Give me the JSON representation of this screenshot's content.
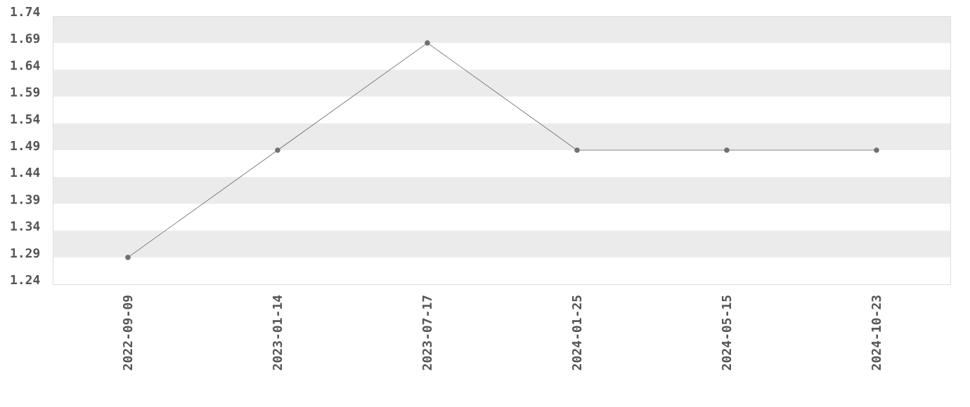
{
  "chart_data": {
    "type": "line",
    "title": "",
    "xlabel": "",
    "ylabel": "",
    "categories": [
      "2022-09-09",
      "2023-01-14",
      "2023-07-17",
      "2024-01-25",
      "2024-05-15",
      "2024-10-23"
    ],
    "values": [
      1.29,
      1.49,
      1.69,
      1.49,
      1.49,
      1.49
    ],
    "ylim": [
      1.24,
      1.74
    ],
    "yticks": [
      "1.74",
      "1.69",
      "1.64",
      "1.59",
      "1.54",
      "1.49",
      "1.44",
      "1.39",
      "1.34",
      "1.29",
      "1.24"
    ],
    "grid": "alternating horizontal bands",
    "legend": "none",
    "colors": {
      "line": "#666666",
      "marker": "#707070",
      "band": "#ebebeb",
      "text": "#555555"
    }
  }
}
